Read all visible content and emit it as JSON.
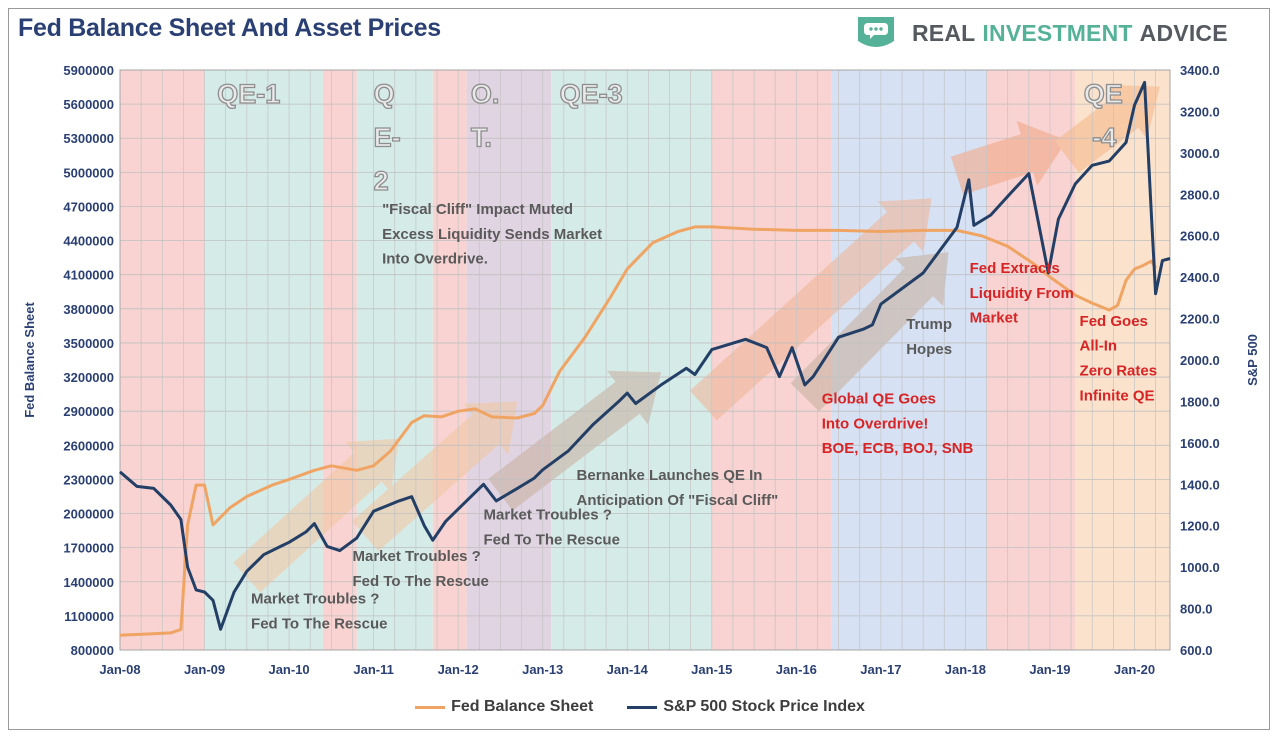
{
  "header": {
    "title": "Fed Balance Sheet And Asset Prices",
    "brand": {
      "word1": "REAL",
      "word2": "INVESTMENT",
      "word3": "ADVICE",
      "icon": "speech-bubble-shield-icon",
      "color": "#55b197"
    }
  },
  "legend": [
    {
      "label": "Fed Balance Sheet",
      "color": "#f0a464"
    },
    {
      "label": "S&P 500 Stock Price Index",
      "color": "#243f66"
    }
  ],
  "chart_data": {
    "type": "line",
    "title": "Fed Balance Sheet And Asset Prices",
    "xlabel": "",
    "ylabel": "Fed Balance Sheet",
    "y2label": "S&P 500",
    "xlim": [
      2008.0,
      2020.42
    ],
    "ylim": [
      800000,
      5900000
    ],
    "y2lim": [
      600,
      3400
    ],
    "grid": true,
    "legend_position": "bottom",
    "x_ticks": [
      {
        "x": 2008,
        "label": "Jan-08"
      },
      {
        "x": 2009,
        "label": "Jan-09"
      },
      {
        "x": 2010,
        "label": "Jan-10"
      },
      {
        "x": 2011,
        "label": "Jan-11"
      },
      {
        "x": 2012,
        "label": "Jan-12"
      },
      {
        "x": 2013,
        "label": "Jan-13"
      },
      {
        "x": 2014,
        "label": "Jan-14"
      },
      {
        "x": 2015,
        "label": "Jan-15"
      },
      {
        "x": 2016,
        "label": "Jan-16"
      },
      {
        "x": 2017,
        "label": "Jan-17"
      },
      {
        "x": 2018,
        "label": "Jan-18"
      },
      {
        "x": 2019,
        "label": "Jan-19"
      },
      {
        "x": 2020,
        "label": "Jan-20"
      }
    ],
    "y_ticks": [
      "800000",
      "1100000",
      "1400000",
      "1700000",
      "2000000",
      "2300000",
      "2600000",
      "2900000",
      "3200000",
      "3500000",
      "3800000",
      "4100000",
      "4400000",
      "4700000",
      "5000000",
      "5300000",
      "5600000",
      "5900000"
    ],
    "y2_ticks": [
      "600.0",
      "800.0",
      "1000.0",
      "1200.0",
      "1400.0",
      "1600.0",
      "1800.0",
      "2000.0",
      "2200.0",
      "2400.0",
      "2600.0",
      "2800.0",
      "3000.0",
      "3200.0",
      "3400.0"
    ],
    "bands": [
      {
        "x0": 2008.0,
        "x1": 2009.0,
        "color": "#f8d3d1"
      },
      {
        "x0": 2009.0,
        "x1": 2010.4,
        "color": "#d5ebe8"
      },
      {
        "x0": 2010.4,
        "x1": 2010.8,
        "color": "#f8d3d1"
      },
      {
        "x0": 2010.8,
        "x1": 2011.7,
        "color": "#d5ebe8"
      },
      {
        "x0": 2011.7,
        "x1": 2012.1,
        "color": "#f8d3d1"
      },
      {
        "x0": 2012.1,
        "x1": 2013.1,
        "color": "#e0d3e2"
      },
      {
        "x0": 2013.1,
        "x1": 2015.0,
        "color": "#d5ebe8"
      },
      {
        "x0": 2015.0,
        "x1": 2016.42,
        "color": "#f8d3d1"
      },
      {
        "x0": 2016.42,
        "x1": 2018.25,
        "color": "#d6e1f3"
      },
      {
        "x0": 2018.25,
        "x1": 2019.3,
        "color": "#f8d3d1"
      },
      {
        "x0": 2019.3,
        "x1": 2020.42,
        "color": "#fbe2cd"
      }
    ],
    "series": [
      {
        "name": "Fed Balance Sheet",
        "axis": "left",
        "color": "#f0a464",
        "x": [
          2008.0,
          2008.3,
          2008.6,
          2008.72,
          2008.8,
          2008.9,
          2009.0,
          2009.1,
          2009.3,
          2009.5,
          2009.8,
          2010.0,
          2010.3,
          2010.5,
          2010.8,
          2011.0,
          2011.2,
          2011.45,
          2011.6,
          2011.8,
          2012.0,
          2012.2,
          2012.4,
          2012.7,
          2012.9,
          2013.0,
          2013.2,
          2013.5,
          2013.8,
          2014.0,
          2014.3,
          2014.6,
          2014.8,
          2015.0,
          2015.5,
          2016.0,
          2016.5,
          2017.0,
          2017.5,
          2017.9,
          2018.2,
          2018.5,
          2018.8,
          2019.0,
          2019.3,
          2019.5,
          2019.7,
          2019.8,
          2019.9,
          2020.0,
          2020.1,
          2020.2,
          2020.25
        ],
        "y": [
          930000,
          940000,
          950000,
          980000,
          1900000,
          2250000,
          2250000,
          1900000,
          2050000,
          2150000,
          2250000,
          2300000,
          2380000,
          2420000,
          2380000,
          2420000,
          2550000,
          2800000,
          2860000,
          2850000,
          2900000,
          2920000,
          2850000,
          2840000,
          2880000,
          2950000,
          3250000,
          3550000,
          3900000,
          4150000,
          4380000,
          4480000,
          4520000,
          4520000,
          4500000,
          4490000,
          4490000,
          4480000,
          4490000,
          4490000,
          4440000,
          4350000,
          4200000,
          4080000,
          3920000,
          3850000,
          3790000,
          3830000,
          4050000,
          4150000,
          4180000,
          4220000,
          4160000
        ]
      },
      {
        "name": "S&P 500 Stock Price Index",
        "axis": "right",
        "color": "#243f66",
        "x": [
          2008.0,
          2008.2,
          2008.4,
          2008.6,
          2008.72,
          2008.8,
          2008.9,
          2009.0,
          2009.1,
          2009.19,
          2009.35,
          2009.5,
          2009.7,
          2009.9,
          2010.0,
          2010.2,
          2010.3,
          2010.45,
          2010.6,
          2010.8,
          2011.0,
          2011.3,
          2011.45,
          2011.6,
          2011.7,
          2011.85,
          2012.0,
          2012.3,
          2012.45,
          2012.7,
          2012.9,
          2013.0,
          2013.3,
          2013.6,
          2013.9,
          2014.0,
          2014.1,
          2014.4,
          2014.7,
          2014.8,
          2015.0,
          2015.4,
          2015.65,
          2015.8,
          2015.95,
          2016.1,
          2016.2,
          2016.5,
          2016.8,
          2016.9,
          2017.0,
          2017.5,
          2017.9,
          2018.04,
          2018.1,
          2018.3,
          2018.5,
          2018.75,
          2018.98,
          2019.1,
          2019.3,
          2019.5,
          2019.7,
          2019.9,
          2020.0,
          2020.12,
          2020.2,
          2020.25,
          2020.33,
          2020.42
        ],
        "y": [
          1460,
          1390,
          1380,
          1300,
          1230,
          1000,
          890,
          880,
          840,
          700,
          880,
          980,
          1060,
          1100,
          1120,
          1170,
          1210,
          1100,
          1080,
          1140,
          1270,
          1320,
          1340,
          1200,
          1130,
          1220,
          1280,
          1400,
          1320,
          1380,
          1430,
          1470,
          1560,
          1690,
          1800,
          1840,
          1790,
          1880,
          1960,
          1930,
          2050,
          2100,
          2060,
          1920,
          2060,
          1880,
          1920,
          2110,
          2150,
          2170,
          2270,
          2420,
          2640,
          2870,
          2650,
          2700,
          2790,
          2900,
          2420,
          2680,
          2850,
          2940,
          2960,
          3050,
          3230,
          3340,
          2700,
          2320,
          2480,
          2490
        ]
      }
    ],
    "annotations": [
      {
        "text": "QE-1",
        "x": 2009.15,
        "y2": 3290,
        "style": "outline"
      },
      {
        "text": "Q",
        "x": 2011.0,
        "y2": 3290,
        "style": "outline"
      },
      {
        "text": "E-",
        "x": 2011.0,
        "y2": 3080,
        "style": "outline"
      },
      {
        "text": "2",
        "x": 2011.0,
        "y2": 2870,
        "style": "outline"
      },
      {
        "text": "O.",
        "x": 2012.15,
        "y2": 3290,
        "style": "outline"
      },
      {
        "text": "T.",
        "x": 2012.15,
        "y2": 3080,
        "style": "outline"
      },
      {
        "text": "QE-3",
        "x": 2013.2,
        "y2": 3290,
        "style": "outline"
      },
      {
        "text": "QE",
        "x": 2019.4,
        "y2": 3290,
        "style": "outline"
      },
      {
        "text": "-4",
        "x": 2019.5,
        "y2": 3080,
        "style": "outline"
      },
      {
        "text": "\"Fiscal Cliff\" Impact Muted",
        "x": 2011.1,
        "y2": 2705,
        "style": "gray"
      },
      {
        "text": "Excess Liquidity Sends Market",
        "x": 2011.1,
        "y2": 2585,
        "style": "gray"
      },
      {
        "text": "Into Overdrive.",
        "x": 2011.1,
        "y2": 2465,
        "style": "gray"
      },
      {
        "text": "Bernanke Launches QE In",
        "x": 2013.4,
        "y2": 1420,
        "style": "gray"
      },
      {
        "text": "Anticipation Of \"Fiscal Cliff\"",
        "x": 2013.4,
        "y2": 1300,
        "style": "gray"
      },
      {
        "text": "Market Troubles ?",
        "x": 2012.3,
        "y2": 1230,
        "style": "gray"
      },
      {
        "text": "Fed To The Rescue",
        "x": 2012.3,
        "y2": 1110,
        "style": "gray"
      },
      {
        "text": "Market Troubles ?",
        "x": 2010.75,
        "y2": 1030,
        "style": "gray"
      },
      {
        "text": "Fed To The Rescue",
        "x": 2010.75,
        "y2": 910,
        "style": "gray"
      },
      {
        "text": "Market Troubles ?",
        "x": 2009.55,
        "y2": 825,
        "style": "gray"
      },
      {
        "text": "Fed To The Rescue",
        "x": 2009.55,
        "y2": 705,
        "style": "gray"
      },
      {
        "text": "Trump",
        "x": 2017.3,
        "y2": 2150,
        "style": "gray"
      },
      {
        "text": "Hopes",
        "x": 2017.3,
        "y2": 2030,
        "style": "gray"
      },
      {
        "text": "Global QE Goes",
        "x": 2016.3,
        "y2": 1790,
        "style": "red"
      },
      {
        "text": "Into Overdrive!",
        "x": 2016.3,
        "y2": 1670,
        "style": "red"
      },
      {
        "text": "BOE, ECB, BOJ, SNB",
        "x": 2016.3,
        "y2": 1550,
        "style": "red"
      },
      {
        "text": "Fed Extracts",
        "x": 2018.05,
        "y2": 2420,
        "style": "red"
      },
      {
        "text": "Liquidity From",
        "x": 2018.05,
        "y2": 2300,
        "style": "red"
      },
      {
        "text": "Market",
        "x": 2018.05,
        "y2": 2180,
        "style": "red"
      },
      {
        "text": "Fed Goes",
        "x": 2019.35,
        "y2": 2165,
        "style": "red"
      },
      {
        "text": "All-In",
        "x": 2019.35,
        "y2": 2045,
        "style": "red"
      },
      {
        "text": "Zero Rates",
        "x": 2019.35,
        "y2": 1925,
        "style": "red"
      },
      {
        "text": "Infinite QE",
        "x": 2019.35,
        "y2": 1805,
        "style": "red"
      }
    ],
    "trend_arrows": [
      {
        "x0": 2009.5,
        "y0": 950,
        "x1": 2011.3,
        "y1": 1620,
        "color": "#f2c8a4"
      },
      {
        "x0": 2010.9,
        "y0": 1150,
        "x1": 2012.7,
        "y1": 1800,
        "color": "#f2c8a4"
      },
      {
        "x0": 2012.5,
        "y0": 1350,
        "x1": 2014.4,
        "y1": 1940,
        "color": "#c9b3a3"
      },
      {
        "x0": 2014.9,
        "y0": 1780,
        "x1": 2017.6,
        "y1": 2780,
        "color": "#f0b69a"
      },
      {
        "x0": 2016.1,
        "y0": 1820,
        "x1": 2017.8,
        "y1": 2520,
        "color": "#c9b3a3"
      },
      {
        "x0": 2017.9,
        "y0": 2890,
        "x1": 2019.2,
        "y1": 3060,
        "color": "#f3a989"
      },
      {
        "x0": 2019.2,
        "y0": 2980,
        "x1": 2020.3,
        "y1": 3320,
        "color": "#f6b98c"
      }
    ]
  }
}
